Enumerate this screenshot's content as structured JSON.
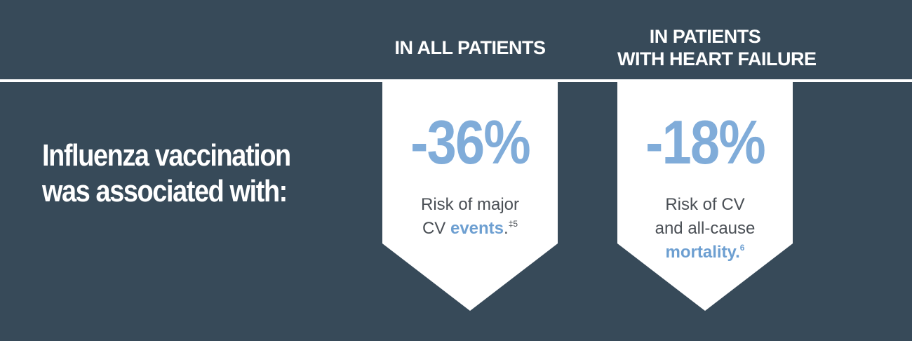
{
  "headline": {
    "line1": "Influenza vaccination",
    "line2": "was associated with:"
  },
  "columns": [
    {
      "heading": [
        "IN ALL PATIENTS"
      ],
      "value": "-36%",
      "desc_lines": [
        "Risk of major",
        "CV "
      ],
      "highlight": "events",
      "after_highlight": ".",
      "superscript": "‡5"
    },
    {
      "heading": [
        "IN PATIENTS",
        "WITH HEART FAILURE"
      ],
      "value": "-18%",
      "desc_lines": [
        "Risk of CV",
        "and all-cause"
      ],
      "highlight": "mortality.",
      "after_highlight": "",
      "superscript": "6"
    }
  ],
  "colors": {
    "background": "#374a59",
    "card": "#ffffff",
    "accent": "#80acd9",
    "text": "#4a4f55"
  }
}
